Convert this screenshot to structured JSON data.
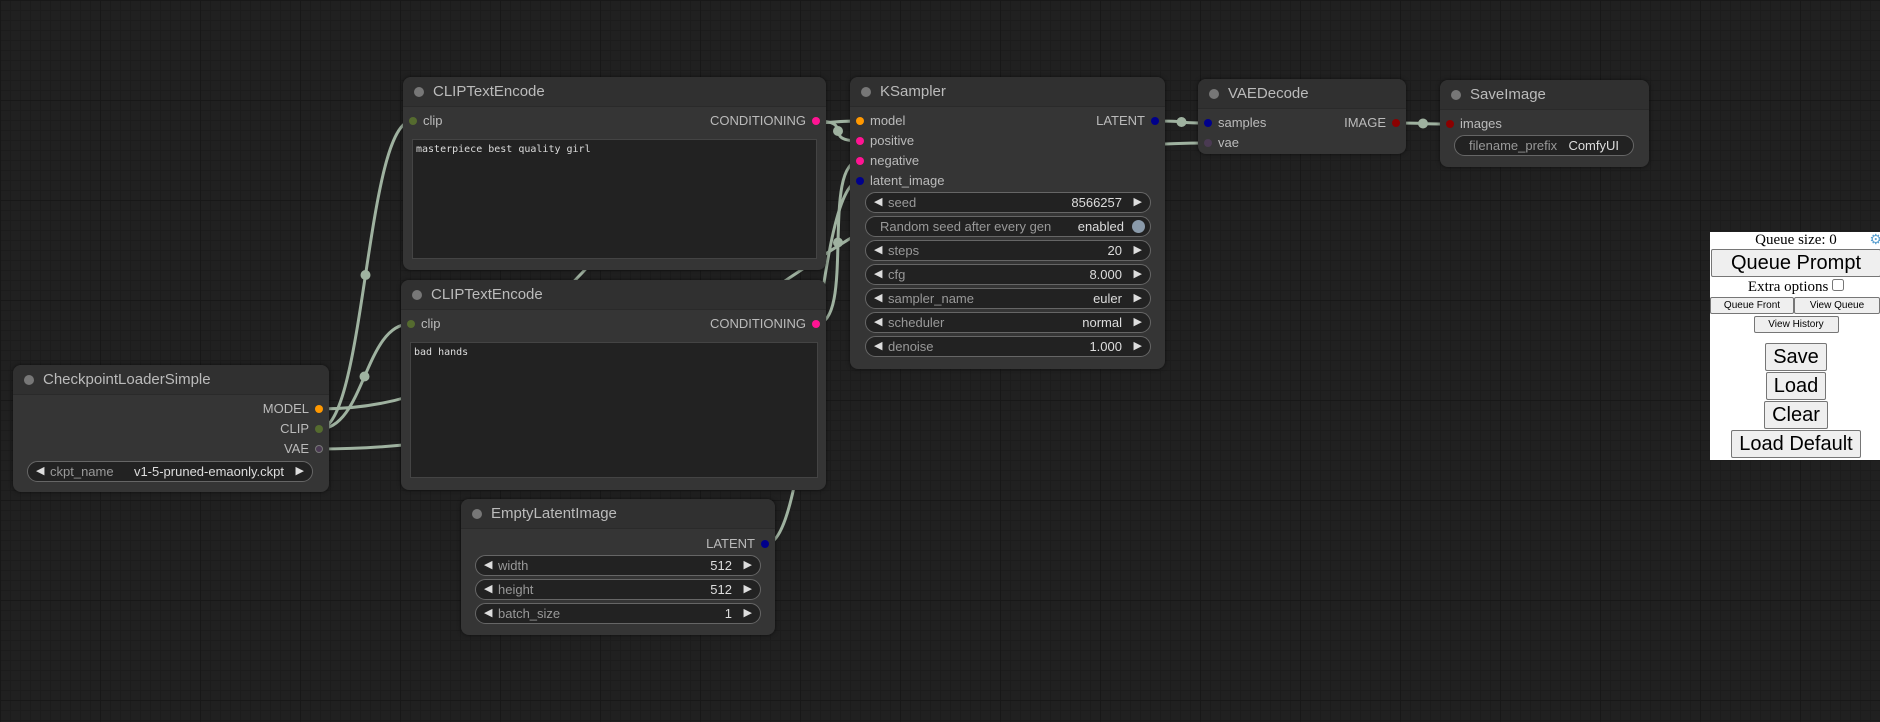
{
  "nodes": {
    "clip1": {
      "title": "CLIPTextEncode",
      "input": "clip",
      "output": "CONDITIONING",
      "text": "masterpiece best quality girl"
    },
    "clip2": {
      "title": "CLIPTextEncode",
      "input": "clip",
      "output": "CONDITIONING",
      "text": "bad hands"
    },
    "ckpt": {
      "title": "CheckpointLoaderSimple",
      "outputs": [
        "MODEL",
        "CLIP",
        "VAE"
      ],
      "widget": {
        "name": "ckpt_name",
        "value": "v1-5-pruned-emaonly.ckpt"
      }
    },
    "latent": {
      "title": "EmptyLatentImage",
      "output": "LATENT",
      "widgets": [
        {
          "name": "width",
          "value": "512"
        },
        {
          "name": "height",
          "value": "512"
        },
        {
          "name": "batch_size",
          "value": "1"
        }
      ]
    },
    "ksampler": {
      "title": "KSampler",
      "inputs": [
        "model",
        "positive",
        "negative",
        "latent_image"
      ],
      "output": "LATENT",
      "seed": {
        "name": "seed",
        "value": "8566257"
      },
      "toggle": {
        "name": "Random seed after every gen",
        "value": "enabled"
      },
      "widgets": [
        {
          "name": "steps",
          "value": "20"
        },
        {
          "name": "cfg",
          "value": "8.000"
        },
        {
          "name": "sampler_name",
          "value": "euler"
        },
        {
          "name": "scheduler",
          "value": "normal"
        },
        {
          "name": "denoise",
          "value": "1.000"
        }
      ]
    },
    "vae": {
      "title": "VAEDecode",
      "inputs": [
        "samples",
        "vae"
      ],
      "output": "IMAGE"
    },
    "save": {
      "title": "SaveImage",
      "input": "images",
      "widget": {
        "name": "filename_prefix",
        "value": "ComfyUI"
      }
    }
  },
  "colors": {
    "MODEL": "#ff9800",
    "CLIP": "#556b2f",
    "VAE": "#4a3a52",
    "CONDITIONING": "#ff1493",
    "LATENT": "#00008b",
    "IMAGE": "#8b0000",
    "link": "#9fb2a0"
  },
  "panel": {
    "queue_size": "Queue size: 0",
    "queue_prompt": "Queue Prompt",
    "extra_options": "Extra options",
    "queue_front": "Queue Front",
    "view_queue": "View Queue",
    "view_history": "View History",
    "save": "Save",
    "load": "Load",
    "clear": "Clear",
    "load_default": "Load Default"
  }
}
